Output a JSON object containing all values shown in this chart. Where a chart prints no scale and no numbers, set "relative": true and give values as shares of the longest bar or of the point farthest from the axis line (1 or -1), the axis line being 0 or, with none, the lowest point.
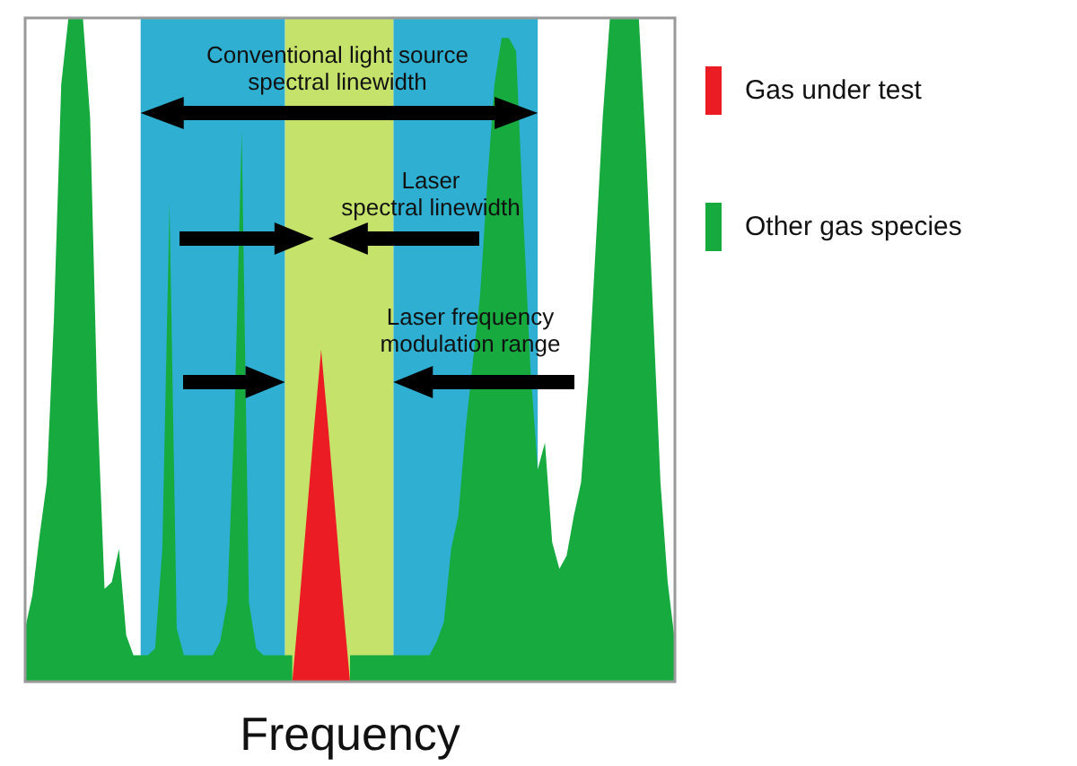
{
  "chart_data": {
    "type": "area",
    "relative": true,
    "xlabel": "Frequency",
    "legend": "top right",
    "categories": [
      null,
      null,
      null,
      null,
      null,
      null,
      null,
      null,
      null,
      null,
      null,
      null,
      null,
      null,
      null,
      null,
      null,
      null,
      null,
      null,
      null,
      null,
      null,
      null,
      null,
      null,
      null,
      null,
      null,
      null,
      null,
      null,
      null,
      null,
      null,
      null,
      null,
      null,
      null,
      null,
      null,
      null,
      null,
      null,
      null,
      null,
      null,
      null,
      null,
      null,
      null,
      null,
      null,
      null,
      null,
      null,
      null,
      null,
      null,
      null,
      null,
      null,
      null,
      null,
      null,
      null,
      null,
      null,
      null,
      null,
      null,
      null,
      null,
      null,
      null,
      null,
      null,
      null,
      null,
      null,
      null,
      null,
      null,
      null,
      null,
      null,
      null,
      null,
      null,
      null,
      null
    ],
    "series": [
      {
        "color": "#2fb0d2",
        "values": [
          null,
          null,
          null,
          null,
          null,
          null,
          null,
          null,
          null,
          null,
          null,
          null,
          null,
          null,
          null,
          null,
          1,
          1,
          1,
          1,
          1,
          1,
          1,
          1,
          1,
          1,
          1,
          1,
          1,
          1,
          1,
          1,
          1,
          1,
          1,
          1,
          1,
          null,
          null,
          null,
          null,
          null,
          null,
          null,
          null,
          null,
          null,
          null,
          null,
          null,
          null,
          1,
          1,
          1,
          1,
          1,
          1,
          1,
          1,
          1,
          1,
          1,
          1,
          1,
          1,
          1,
          1,
          1,
          1,
          1,
          1,
          1,
          null,
          null,
          null,
          null,
          null,
          null,
          null,
          null,
          null,
          null,
          null,
          null,
          null,
          null,
          null,
          null,
          null,
          null,
          null
        ]
      },
      {
        "color": "#c5e26a",
        "values": [
          null,
          null,
          null,
          null,
          null,
          null,
          null,
          null,
          null,
          null,
          null,
          null,
          null,
          null,
          null,
          null,
          null,
          null,
          null,
          null,
          null,
          null,
          null,
          null,
          null,
          null,
          null,
          null,
          null,
          null,
          null,
          null,
          null,
          null,
          null,
          null,
          1,
          1,
          1,
          1,
          1,
          1,
          1,
          1,
          1,
          1,
          1,
          1,
          1,
          1,
          1,
          1,
          null,
          null,
          null,
          null,
          null,
          null,
          null,
          null,
          null,
          null,
          null,
          null,
          null,
          null,
          null,
          null,
          null,
          null,
          null,
          null,
          null,
          null,
          null,
          null,
          null,
          null,
          null,
          null,
          null,
          null,
          null,
          null,
          null,
          null,
          null,
          null,
          null,
          null,
          null
        ]
      },
      {
        "name": "Other gas species",
        "color": "#17ab3f",
        "values": [
          0.08,
          0.13,
          0.22,
          0.3,
          0.55,
          0.9,
          1,
          1,
          1,
          0.85,
          0.42,
          0.14,
          0.15,
          0.2,
          0.07,
          0.04,
          0.04,
          0.04,
          0.05,
          0.2,
          0.72,
          0.08,
          0.04,
          0.04,
          0.04,
          0.04,
          0.04,
          0.06,
          0.12,
          0.4,
          0.83,
          0.12,
          0.05,
          0.04,
          0.04,
          0.04,
          0.04,
          0.04,
          null,
          null,
          null,
          null,
          null,
          null,
          null,
          0.04,
          0.04,
          0.04,
          0.04,
          0.04,
          0.04,
          0.04,
          0.04,
          0.04,
          0.04,
          0.04,
          0.04,
          0.06,
          0.09,
          0.2,
          0.25,
          0.38,
          0.48,
          0.58,
          0.75,
          0.9,
          0.97,
          0.97,
          0.95,
          0.7,
          0.47,
          0.32,
          0.36,
          0.21,
          0.17,
          0.19,
          0.25,
          0.3,
          0.45,
          0.65,
          0.85,
          1,
          1,
          1,
          1,
          1,
          0.8,
          0.55,
          0.3,
          0.15,
          0.06
        ]
      },
      {
        "name": "Gas under test",
        "color": "#ec1c24",
        "values": [
          null,
          null,
          null,
          null,
          null,
          null,
          null,
          null,
          null,
          null,
          null,
          null,
          null,
          null,
          null,
          null,
          null,
          null,
          null,
          null,
          null,
          null,
          null,
          null,
          null,
          null,
          null,
          null,
          null,
          null,
          null,
          null,
          null,
          null,
          null,
          null,
          null,
          0,
          0.12,
          0.25,
          0.38,
          0.5,
          0.38,
          0.25,
          0.12,
          0,
          null,
          null,
          null,
          null,
          null,
          null,
          null,
          null,
          null,
          null,
          null,
          null,
          null,
          null,
          null,
          null,
          null,
          null,
          null,
          null,
          null,
          null,
          null,
          null,
          null,
          null,
          null,
          null,
          null,
          null,
          null,
          null,
          null,
          null,
          null,
          null,
          null,
          null,
          null,
          null,
          null,
          null,
          null,
          null,
          null
        ]
      }
    ],
    "annotations": [
      "Conventional light source\nspectral linewidth",
      "Laser\nspectral linewidth",
      "Laser frequency\nmodulation range"
    ]
  }
}
